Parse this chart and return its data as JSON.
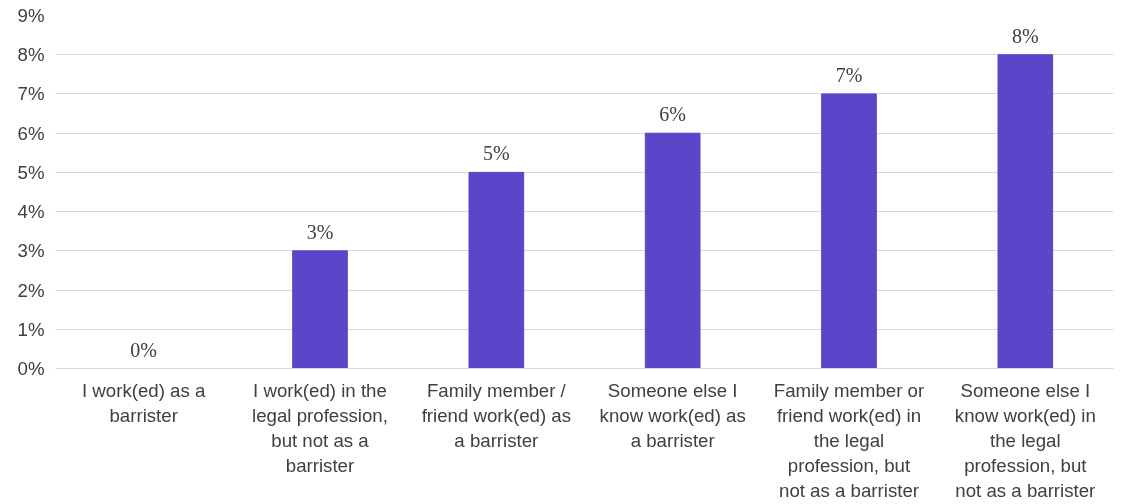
{
  "chart_data": {
    "type": "bar",
    "categories": [
      "I work(ed) as a\nbarrister",
      "I work(ed) in the\nlegal profession,\nbut not as a\nbarrister",
      "Family member /\nfriend work(ed) as\na barrister",
      "Someone else I\nknow work(ed) as\na barrister",
      "Family member or\nfriend work(ed) in\nthe legal\nprofession, but\nnot as a barrister",
      "Someone else I\nknow work(ed) in\nthe legal\nprofession, but\nnot as a barrister"
    ],
    "values": [
      0,
      3,
      5,
      6,
      7,
      8
    ],
    "value_labels": [
      "0%",
      "3%",
      "5%",
      "6%",
      "7%",
      "8%"
    ],
    "color": "#5b45c8",
    "ylim": [
      0,
      9
    ],
    "yticks": [
      {
        "value": 0,
        "label": "0%"
      },
      {
        "value": 1,
        "label": "1%"
      },
      {
        "value": 2,
        "label": "2%"
      },
      {
        "value": 3,
        "label": "3%"
      },
      {
        "value": 4,
        "label": "4%"
      },
      {
        "value": 5,
        "label": "5%"
      },
      {
        "value": 6,
        "label": "6%"
      },
      {
        "value": 7,
        "label": "7%"
      },
      {
        "value": 8,
        "label": "8%"
      },
      {
        "value": 9,
        "label": "9%"
      }
    ],
    "grid": "y"
  }
}
